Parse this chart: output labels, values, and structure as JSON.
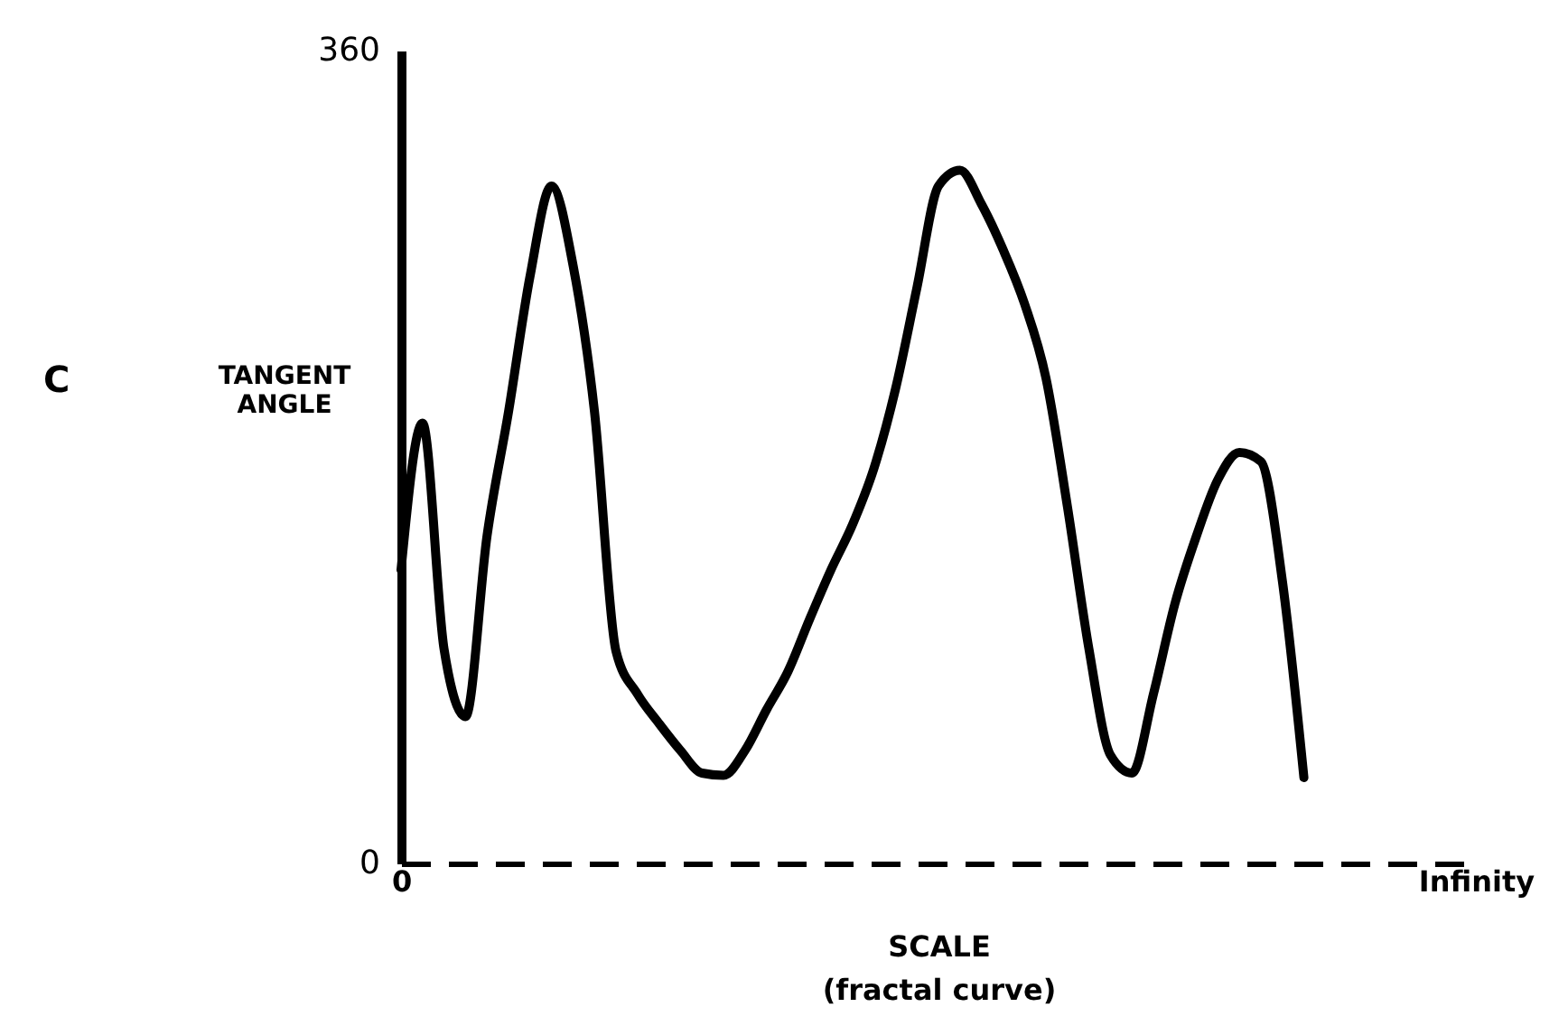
{
  "chart_data": {
    "type": "line",
    "xlabel": "SCALE\n(fractal curve)",
    "ylabel": "TANGENT\nANGLE",
    "annotations": [
      "C"
    ],
    "categories": [
      "0",
      null,
      null,
      null,
      null,
      null,
      null,
      null,
      null,
      null,
      null,
      null,
      null,
      null,
      null,
      null,
      null,
      null,
      null,
      null,
      null,
      null,
      null,
      null,
      null,
      null,
      null,
      null,
      null,
      null,
      null,
      null,
      null,
      null,
      null,
      null,
      null,
      null,
      null,
      null,
      null,
      null,
      null,
      null,
      null,
      null,
      null,
      null,
      null,
      null,
      "Infinity"
    ],
    "series": [
      {
        "color": "#000000",
        "values": [
          130,
          195,
          95,
          65,
          145,
          200,
          260,
          300,
          265,
          200,
          94,
          75,
          62,
          50,
          40,
          39,
          50,
          68,
          85,
          108,
          130,
          150,
          175,
          210,
          255,
          300,
          307,
          292,
          272,
          248,
          215,
          158,
          95,
          48,
          40,
          75,
          115,
          145,
          170,
          182,
          178,
          125,
          38,
          null,
          null,
          null,
          null,
          null,
          null,
          null,
          null
        ]
      }
    ],
    "ylim": [
      0,
      360
    ],
    "yticks": [
      0,
      360
    ],
    "grid": false,
    "marker": "none",
    "line_style": "solid"
  }
}
